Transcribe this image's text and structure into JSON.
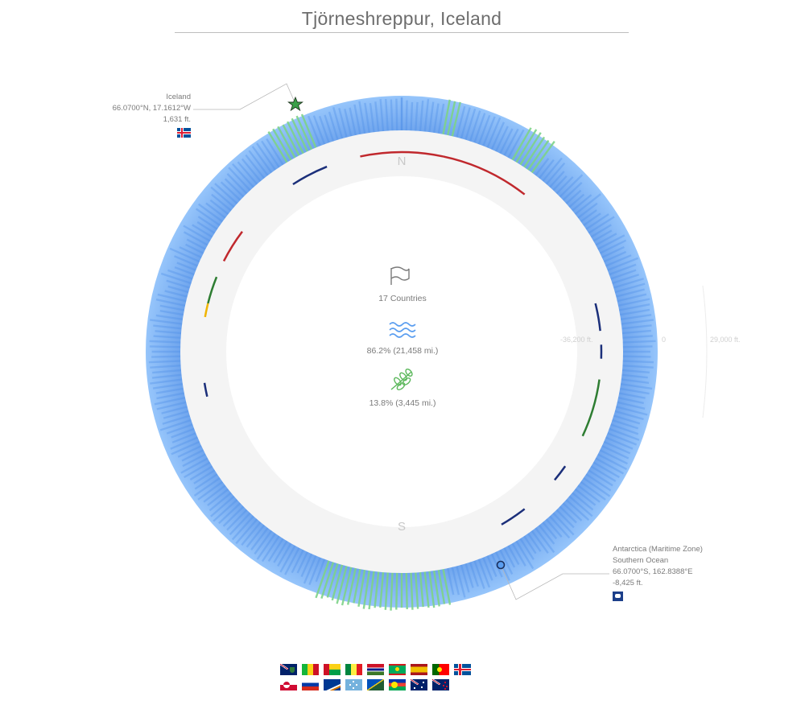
{
  "title": "Tjörneshreppur, Iceland",
  "compass": {
    "north": "N",
    "south": "S"
  },
  "origin": {
    "name": "Iceland",
    "coords": "66.0700°N, 17.1612°W",
    "elevation": "1,631 ft."
  },
  "antipode": {
    "name": "Antarctica (Maritime Zone)",
    "sub": "Southern Ocean",
    "coords": "66.0700°S, 162.8388°E",
    "elevation": "-8,425 ft."
  },
  "scale": {
    "min": "-36,200 ft.",
    "zero": "0",
    "max": "29,000 ft."
  },
  "stats": {
    "countries": "17 Countries",
    "water": "86.2%   (21,458 mi.)",
    "land": "13.8%   (3,445 mi.)"
  },
  "colors": {
    "water": "#5b9ef0",
    "land": "#7ed389",
    "ring": "#f4f4f4"
  },
  "icons": [
    "flag-icon",
    "water-waves-icon",
    "land-leaf-icon",
    "star-marker-icon",
    "circle-marker-icon"
  ],
  "flags_row1": [
    "Falkland Islands",
    "Mali",
    "Guinea-Bissau",
    "Senegal",
    "Gambia",
    "Mauritania",
    "Spain",
    "Portugal",
    "Iceland"
  ],
  "flags_row2": [
    "Greenland",
    "Russia",
    "Marshall Islands",
    "Micronesia",
    "Solomon Islands",
    "New Caledonia",
    "Australia",
    "New Zealand"
  ]
}
